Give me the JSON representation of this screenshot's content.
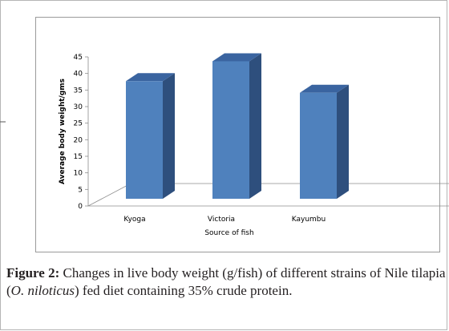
{
  "chart_data": {
    "type": "bar",
    "categories": [
      "Kyoga",
      "Victoria",
      "Kayumbu"
    ],
    "series": [
      {
        "values": [
          35.5,
          41.5,
          32
        ]
      }
    ],
    "ylabel": "Average body weight/gms",
    "xlabel": "Source of fish",
    "ylim": [
      0,
      45
    ],
    "yticks": [
      0,
      5,
      10,
      15,
      20,
      25,
      30,
      35,
      40,
      45
    ],
    "grid": false,
    "bar_colors": {
      "front": "#4f81bd",
      "side": "#2e4f7d",
      "top": "#3a64a0"
    }
  },
  "caption": {
    "label": "Figure 2:",
    "text_before": " Changes in live body weight (g/fish) of different strains of Nile tilapia (",
    "species": "O. niloticus",
    "text_after": ") fed diet containing 35% crude protein."
  }
}
